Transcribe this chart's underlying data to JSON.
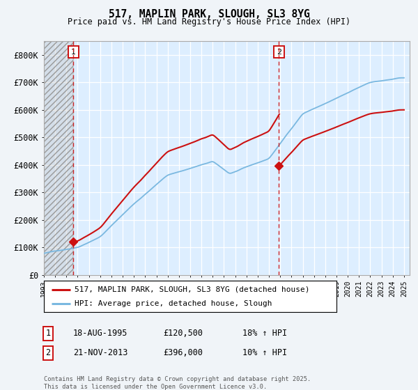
{
  "title": "517, MAPLIN PARK, SLOUGH, SL3 8YG",
  "subtitle": "Price paid vs. HM Land Registry's House Price Index (HPI)",
  "ylim": [
    0,
    850000
  ],
  "yticks": [
    0,
    100000,
    200000,
    300000,
    400000,
    500000,
    600000,
    700000,
    800000
  ],
  "ytick_labels": [
    "£0",
    "£100K",
    "£200K",
    "£300K",
    "£400K",
    "£500K",
    "£600K",
    "£700K",
    "£800K"
  ],
  "hpi_color": "#7ab8e0",
  "price_color": "#cc1111",
  "marker_color": "#cc1111",
  "vline_color": "#cc1111",
  "sale1_year": 1995.63,
  "sale1_price": 120500,
  "sale2_year": 2013.89,
  "sale2_price": 396000,
  "legend_label1": "517, MAPLIN PARK, SLOUGH, SL3 8YG (detached house)",
  "legend_label2": "HPI: Average price, detached house, Slough",
  "note1_label": "1",
  "note1_date": "18-AUG-1995",
  "note1_price": "£120,500",
  "note1_hpi": "18% ↑ HPI",
  "note2_label": "2",
  "note2_date": "21-NOV-2013",
  "note2_price": "£396,000",
  "note2_hpi": "10% ↑ HPI",
  "footer": "Contains HM Land Registry data © Crown copyright and database right 2025.\nThis data is licensed under the Open Government Licence v3.0.",
  "plot_bg_color": "#ddeeff",
  "fig_bg_color": "#f0f4f8"
}
